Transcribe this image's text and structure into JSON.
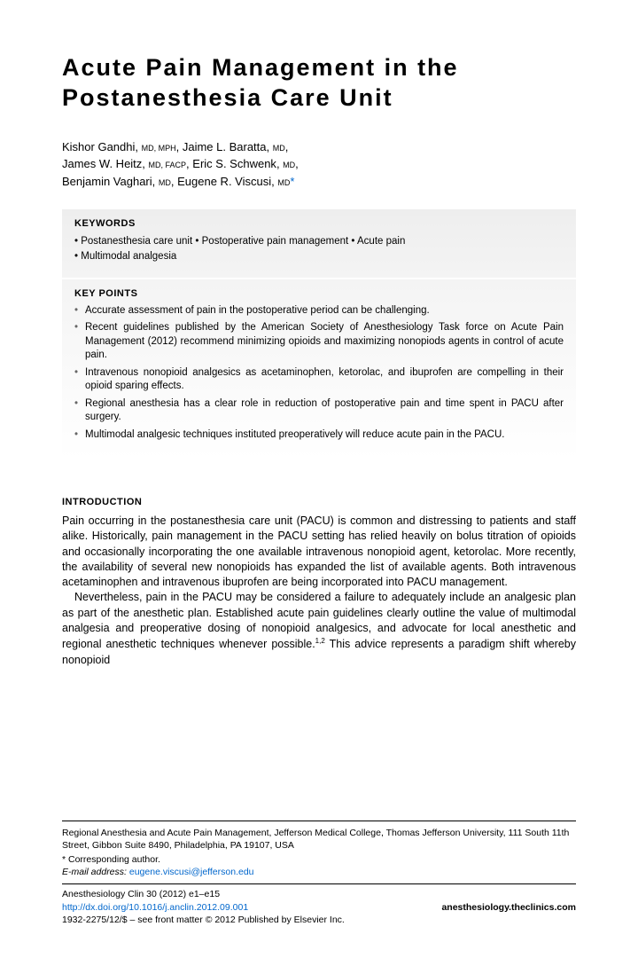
{
  "title": "Acute Pain Management in the Postanesthesia Care Unit",
  "authors": [
    {
      "name": "Kishor Gandhi",
      "creds": "MD, MPH"
    },
    {
      "name": "Jaime L. Baratta",
      "creds": "MD"
    },
    {
      "name": "James W. Heitz",
      "creds": "MD, FACP"
    },
    {
      "name": "Eric S. Schwenk",
      "creds": "MD"
    },
    {
      "name": "Benjamin Vaghari",
      "creds": "MD"
    },
    {
      "name": "Eugene R. Viscusi",
      "creds": "MD",
      "corresponding": true
    }
  ],
  "keywords_heading": "KEYWORDS",
  "keywords": [
    "Postanesthesia care unit",
    "Postoperative pain management",
    "Acute pain",
    "Multimodal analgesia"
  ],
  "keypoints_heading": "KEY POINTS",
  "keypoints": [
    "Accurate assessment of pain in the postoperative period can be challenging.",
    "Recent guidelines published by the American Society of Anesthesiology Task force on Acute Pain Management (2012) recommend minimizing opioids and maximizing nonopiods agents in control of acute pain.",
    "Intravenous nonopioid analgesics as acetaminophen, ketorolac, and ibuprofen are compelling in their opioid sparing effects.",
    "Regional anesthesia has a clear role in reduction of postoperative pain and time spent in PACU after surgery.",
    "Multimodal analgesic techniques instituted preoperatively will reduce acute pain in the PACU."
  ],
  "intro_heading": "INTRODUCTION",
  "intro_paragraphs": [
    "Pain occurring in the postanesthesia care unit (PACU) is common and distressing to patients and staff alike. Historically, pain management in the PACU setting has relied heavily on bolus titration of opioids and occasionally incorporating the one available intravenous nonopioid agent, ketorolac. More recently, the availability of several new nonopioids has expanded the list of available agents. Both intravenous acetaminophen and intravenous ibuprofen are being incorporated into PACU management.",
    "Nevertheless, pain in the PACU may be considered a failure to adequately include an analgesic plan as part of the anesthetic plan. Established acute pain guidelines clearly outline the value of multimodal analgesia and preoperative dosing of nonopioid analgesics, and advocate for local anesthetic and regional anesthetic techniques whenever possible.<span class=\"sup\">1,2</span> This advice represents a paradigm shift whereby nonopioid"
  ],
  "footer": {
    "affiliation": "Regional Anesthesia and Acute Pain Management, Jefferson Medical College, Thomas Jefferson University, 111 South 11th Street, Gibbon Suite 8490, Philadelphia, PA 19107, USA",
    "corresponding_label": "* Corresponding author.",
    "email_label": "E-mail address:",
    "email": "eugene.viscusi@jefferson.edu",
    "journal": "Anesthesiology Clin 30 (2012) e1–e15",
    "doi_url": "http://dx.doi.org/10.1016/j.anclin.2012.09.001",
    "site": "anesthesiology.theclinics.com",
    "copyright": "1932-2275/12/$ – see front matter © 2012 Published by Elsevier Inc."
  },
  "colors": {
    "link": "#0066cc",
    "box_bg_top": "#eeeeee",
    "box_bg_bottom": "#ffffff",
    "text": "#000000"
  }
}
